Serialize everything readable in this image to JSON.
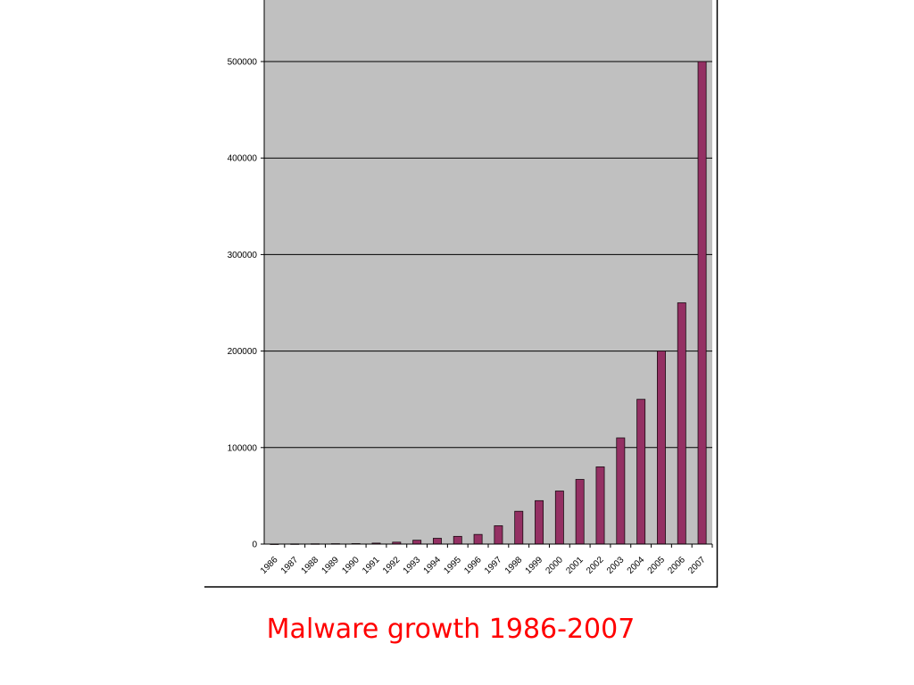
{
  "chart_data": {
    "type": "bar",
    "title": "",
    "xlabel": "",
    "ylabel": "",
    "categories": [
      "1986",
      "1987",
      "1988",
      "1989",
      "1990",
      "1991",
      "1992",
      "1993",
      "1994",
      "1995",
      "1996",
      "1997",
      "1998",
      "1999",
      "2000",
      "2001",
      "2002",
      "2003",
      "2004",
      "2005",
      "2006",
      "2007"
    ],
    "series": [
      {
        "values": [
          100,
          200,
          300,
          400,
          500,
          1000,
          2000,
          4000,
          6000,
          8000,
          10000,
          19000,
          34000,
          45000,
          55000,
          67000,
          80000,
          110000,
          150000,
          200000,
          250000,
          500000
        ]
      }
    ],
    "yticks": [
      0,
      100000,
      200000,
      300000,
      400000,
      500000
    ],
    "ylim": [
      0,
      560000
    ],
    "grid": true,
    "legend": "none",
    "colors": {
      "bar_fill": "#943063",
      "bar_stroke": "#1a0a12",
      "plot_background": "#c0c0c0",
      "gridline": "#000000"
    }
  },
  "caption": {
    "text": "Malware growth 1986-2007",
    "color": "#ff0000"
  }
}
